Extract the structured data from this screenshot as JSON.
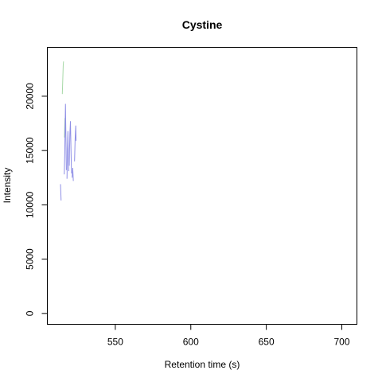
{
  "chart_data": {
    "type": "line",
    "title": "Cystine",
    "xlabel": "Retention time (s)",
    "ylabel": "Intensity",
    "xlim": [
      505,
      710
    ],
    "ylim": [
      -1000,
      24500
    ],
    "xticks": [
      550,
      600,
      650,
      700
    ],
    "yticks": [
      0,
      5000,
      10000,
      15000,
      20000
    ],
    "grid": false,
    "legend": "none",
    "series": [
      {
        "color": "#a6d8a6",
        "segments": [
          [
            [
              514.9,
              20200
            ],
            [
              515.2,
              21500
            ],
            [
              515.5,
              22800
            ],
            [
              515.7,
              23200
            ]
          ],
          [
            [
              516.3,
              16200
            ],
            [
              516.5,
              17200
            ],
            [
              516.7,
              18000
            ]
          ]
        ]
      },
      {
        "color": "#8f8fe6",
        "segments": [
          [
            [
              513.7,
              11900
            ],
            [
              513.9,
              11200
            ],
            [
              514.1,
              10400
            ]
          ],
          [
            [
              516.2,
              12800
            ],
            [
              516.5,
              14500
            ],
            [
              516.8,
              17500
            ],
            [
              517.0,
              19300
            ],
            [
              517.3,
              16000
            ],
            [
              517.6,
              13200
            ]
          ],
          [
            [
              518.0,
              12400
            ],
            [
              518.3,
              15000
            ],
            [
              518.6,
              16800
            ],
            [
              518.9,
              14600
            ],
            [
              519.2,
              13100
            ]
          ],
          [
            [
              519.5,
              13600
            ],
            [
              519.9,
              16500
            ],
            [
              520.3,
              17700
            ],
            [
              520.6,
              15400
            ],
            [
              521.0,
              12900
            ]
          ],
          [
            [
              521.4,
              12500
            ],
            [
              521.8,
              13400
            ],
            [
              522.2,
              12200
            ]
          ],
          [
            [
              523.0,
              14000
            ],
            [
              523.4,
              16100
            ],
            [
              523.8,
              17300
            ],
            [
              524.0,
              15900
            ]
          ]
        ]
      }
    ]
  }
}
